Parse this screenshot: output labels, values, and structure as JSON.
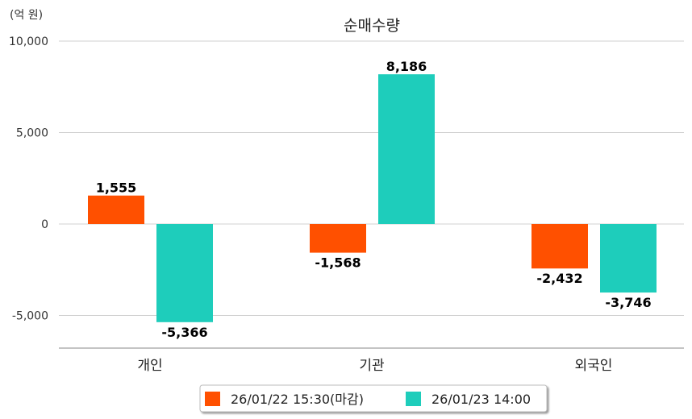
{
  "chart_data": {
    "type": "bar",
    "title": "순매수량",
    "unit_label": "(억 원)",
    "categories": [
      "개인",
      "기관",
      "외국인"
    ],
    "series": [
      {
        "name": "26/01/22 15:30(마감)",
        "color": "#ff5000",
        "values": [
          1555,
          -1568,
          -2432
        ],
        "labels": [
          "1,555",
          "-1,568",
          "-2,432"
        ]
      },
      {
        "name": "26/01/23 14:00",
        "color": "#1ecdbb",
        "values": [
          -5366,
          8186,
          -3746
        ],
        "labels": [
          "-5,366",
          "8,186",
          "-3,746"
        ]
      }
    ],
    "yticks": [
      10000,
      5000,
      0,
      -5000
    ],
    "ytick_labels": [
      "10,000",
      "5,000",
      "0",
      "-5,000"
    ],
    "ylim": [
      -6800,
      10000
    ],
    "grid": true,
    "legend_position": "bottom"
  }
}
